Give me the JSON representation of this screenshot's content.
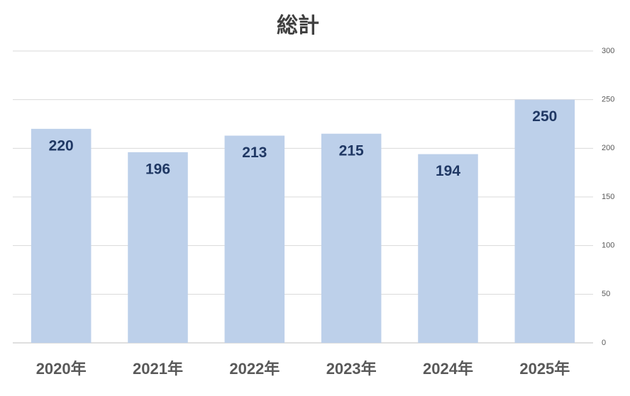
{
  "chart_data": {
    "type": "bar",
    "title": "総計",
    "categories": [
      "2020年",
      "2021年",
      "2022年",
      "2023年",
      "2024年",
      "2025年"
    ],
    "values": [
      220,
      196,
      213,
      215,
      194,
      250
    ],
    "color": "#bdd0ea",
    "label_color": "#203864",
    "ylim": [
      0,
      300
    ],
    "yticks": [
      0,
      50,
      100,
      150,
      200,
      250,
      300
    ],
    "y_axis_side": "right",
    "grid": true
  }
}
